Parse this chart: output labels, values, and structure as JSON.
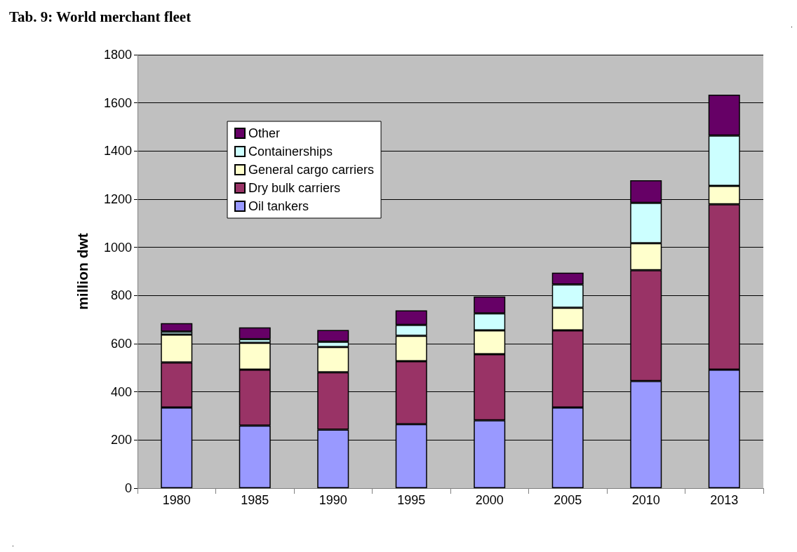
{
  "chart_data": {
    "type": "bar",
    "title": "Tab. 9: World merchant fleet",
    "ylabel": "million dwt",
    "categories": [
      "1980",
      "1985",
      "1990",
      "1995",
      "2000",
      "2005",
      "2010",
      "2013"
    ],
    "stacked": true,
    "series": [
      {
        "name": "Oil tankers",
        "color": "#9999ff",
        "values": [
          335,
          260,
          243,
          266,
          282,
          335,
          445,
          492
        ]
      },
      {
        "name": "Dry bulk carriers",
        "color": "#993366",
        "values": [
          187,
          232,
          238,
          261,
          274,
          320,
          460,
          687
        ]
      },
      {
        "name": "General cargo carriers",
        "color": "#ffffcc",
        "values": [
          116,
          112,
          105,
          106,
          99,
          94,
          112,
          76
        ]
      },
      {
        "name": "Containerships",
        "color": "#ccffff",
        "values": [
          12,
          15,
          22,
          45,
          71,
          97,
          168,
          209
        ]
      },
      {
        "name": "Other",
        "color": "#660066",
        "values": [
          35,
          49,
          49,
          60,
          70,
          49,
          94,
          170
        ]
      }
    ],
    "ylim": [
      0,
      1800
    ],
    "yticks": [
      0,
      200,
      400,
      600,
      800,
      1000,
      1200,
      1400,
      1600,
      1800
    ],
    "grid": "y",
    "legend": "top left"
  }
}
